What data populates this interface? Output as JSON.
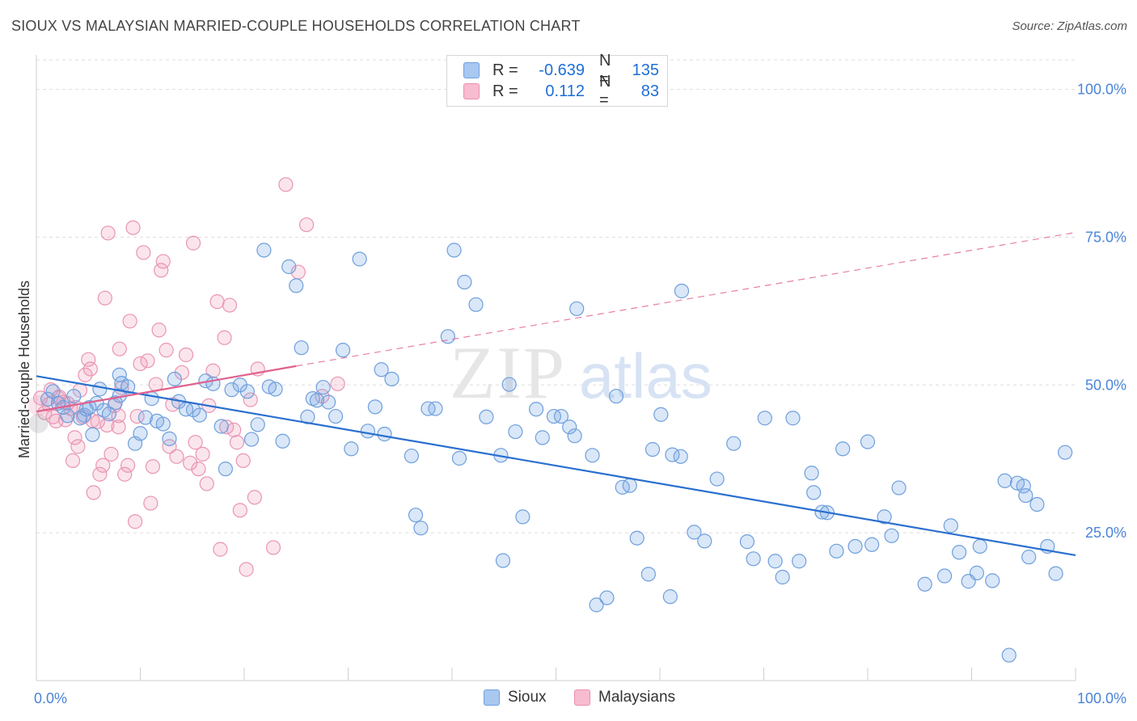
{
  "header": {
    "title": "SIOUX VS MALAYSIAN MARRIED-COUPLE HOUSEHOLDS CORRELATION CHART",
    "source": "Source: ZipAtlas.com"
  },
  "watermark": {
    "zip": "ZIP",
    "atlas": "atlas"
  },
  "legend": {
    "rows": [
      {
        "r_label": "R =",
        "r_value": "-0.639",
        "n_label": "N =",
        "n_value": "135",
        "color": "#a8c8f0",
        "border": "#6fa0e0"
      },
      {
        "r_label": "R =",
        "r_value": "0.112",
        "n_label": "N =",
        "n_value": "83",
        "color": "#f7bcd0",
        "border": "#ec8fae"
      }
    ]
  },
  "bottom_legend": {
    "sioux": "Sioux",
    "malaysians": "Malaysians"
  },
  "colors": {
    "sioux_fill": "rgba(120,170,230,0.28)",
    "sioux_stroke": "#6f9fdc",
    "sioux_line": "#2a6fcf",
    "malay_fill": "rgba(240,150,180,0.25)",
    "malay_stroke": "#e995b3",
    "malay_line": "#e0608e",
    "grid": "#dddddd",
    "tick_label": "#4a84d8"
  },
  "chart_data": {
    "type": "scatter",
    "title": "SIOUX VS MALAYSIAN MARRIED-COUPLE HOUSEHOLDS CORRELATION CHART",
    "xlabel": "",
    "ylabel": "Married-couple Households",
    "xlim": [
      0,
      100
    ],
    "ylim": [
      0,
      105
    ],
    "x_tick_labels": [
      "0.0%",
      "100.0%"
    ],
    "y_ticks": [
      25,
      50,
      75,
      100
    ],
    "y_tick_labels": [
      "25.0%",
      "50.0%",
      "75.0%",
      "100.0%"
    ],
    "grid": "horizontal dashed",
    "legend_position": "top-center",
    "series": [
      {
        "name": "Sioux",
        "trend": {
          "x": [
            0,
            100
          ],
          "y": [
            51.5,
            21.2
          ],
          "style": "solid"
        },
        "points": [
          [
            1.1,
            47.6
          ],
          [
            1.6,
            48.9
          ],
          [
            2.1,
            46.9
          ],
          [
            2.6,
            46.2
          ],
          [
            3.0,
            44.8
          ],
          [
            3.6,
            48.1
          ],
          [
            4.2,
            44.4
          ],
          [
            4.6,
            44.9
          ],
          [
            4.8,
            45.9
          ],
          [
            5.1,
            46.2
          ],
          [
            5.4,
            41.6
          ],
          [
            5.8,
            46.9
          ],
          [
            6.1,
            49.3
          ],
          [
            6.5,
            45.7
          ],
          [
            7.0,
            45.1
          ],
          [
            7.6,
            47.0
          ],
          [
            8.0,
            51.7
          ],
          [
            8.2,
            50.3
          ],
          [
            8.8,
            49.7
          ],
          [
            8.0,
            48.2
          ],
          [
            9.5,
            40.1
          ],
          [
            10.0,
            41.8
          ],
          [
            10.5,
            44.5
          ],
          [
            11.1,
            47.7
          ],
          [
            11.6,
            43.9
          ],
          [
            12.2,
            43.4
          ],
          [
            12.8,
            40.9
          ],
          [
            13.3,
            51.0
          ],
          [
            13.7,
            47.2
          ],
          [
            14.4,
            45.9
          ],
          [
            15.1,
            45.8
          ],
          [
            15.7,
            44.9
          ],
          [
            16.3,
            50.7
          ],
          [
            17.0,
            50.2
          ],
          [
            17.8,
            43.0
          ],
          [
            18.2,
            35.8
          ],
          [
            18.8,
            49.2
          ],
          [
            19.6,
            50.0
          ],
          [
            20.3,
            48.9
          ],
          [
            20.7,
            40.8
          ],
          [
            21.3,
            43.3
          ],
          [
            21.9,
            72.8
          ],
          [
            22.4,
            49.7
          ],
          [
            23.0,
            49.3
          ],
          [
            23.7,
            40.5
          ],
          [
            24.3,
            70.0
          ],
          [
            25.0,
            66.8
          ],
          [
            25.5,
            56.3
          ],
          [
            26.1,
            44.6
          ],
          [
            26.6,
            47.7
          ],
          [
            27.0,
            47.4
          ],
          [
            27.6,
            49.6
          ],
          [
            28.1,
            47.1
          ],
          [
            28.8,
            44.7
          ],
          [
            29.5,
            55.9
          ],
          [
            30.3,
            39.2
          ],
          [
            31.1,
            71.3
          ],
          [
            31.9,
            42.2
          ],
          [
            32.6,
            46.3
          ],
          [
            33.2,
            52.6
          ],
          [
            33.5,
            41.7
          ],
          [
            34.2,
            51.0
          ],
          [
            36.1,
            38.0
          ],
          [
            36.5,
            28.0
          ],
          [
            37.0,
            25.8
          ],
          [
            37.7,
            46.0
          ],
          [
            38.4,
            46.0
          ],
          [
            39.6,
            58.2
          ],
          [
            40.2,
            72.8
          ],
          [
            40.7,
            37.6
          ],
          [
            41.2,
            67.4
          ],
          [
            42.3,
            63.6
          ],
          [
            43.3,
            44.6
          ],
          [
            44.7,
            38.1
          ],
          [
            44.9,
            20.3
          ],
          [
            45.5,
            50.1
          ],
          [
            46.1,
            42.1
          ],
          [
            46.8,
            27.7
          ],
          [
            48.1,
            45.9
          ],
          [
            48.7,
            41.1
          ],
          [
            49.8,
            44.7
          ],
          [
            50.5,
            44.7
          ],
          [
            51.3,
            42.9
          ],
          [
            51.8,
            41.4
          ],
          [
            52.0,
            62.9
          ],
          [
            53.5,
            38.1
          ],
          [
            53.9,
            12.8
          ],
          [
            54.9,
            14.0
          ],
          [
            55.8,
            48.1
          ],
          [
            56.4,
            32.7
          ],
          [
            57.1,
            33.0
          ],
          [
            57.8,
            24.1
          ],
          [
            58.9,
            18.0
          ],
          [
            59.3,
            39.1
          ],
          [
            60.1,
            45.0
          ],
          [
            61.0,
            14.2
          ],
          [
            61.2,
            38.2
          ],
          [
            62.0,
            37.9
          ],
          [
            62.1,
            65.9
          ],
          [
            63.3,
            25.1
          ],
          [
            64.3,
            23.6
          ],
          [
            65.5,
            34.1
          ],
          [
            67.1,
            40.1
          ],
          [
            68.4,
            23.5
          ],
          [
            69.0,
            20.6
          ],
          [
            70.1,
            44.4
          ],
          [
            71.1,
            20.2
          ],
          [
            71.8,
            17.5
          ],
          [
            72.8,
            44.4
          ],
          [
            73.4,
            20.2
          ],
          [
            74.6,
            35.1
          ],
          [
            74.8,
            31.8
          ],
          [
            75.6,
            28.5
          ],
          [
            76.1,
            28.4
          ],
          [
            77.0,
            21.9
          ],
          [
            77.6,
            39.2
          ],
          [
            78.8,
            22.7
          ],
          [
            80.0,
            40.4
          ],
          [
            80.4,
            23.0
          ],
          [
            81.6,
            27.7
          ],
          [
            82.3,
            24.5
          ],
          [
            83.0,
            32.6
          ],
          [
            85.5,
            16.3
          ],
          [
            87.4,
            17.7
          ],
          [
            88.0,
            26.2
          ],
          [
            88.8,
            21.7
          ],
          [
            89.7,
            16.8
          ],
          [
            90.8,
            22.7
          ],
          [
            90.5,
            18.2
          ],
          [
            92.0,
            16.9
          ],
          [
            93.2,
            33.8
          ],
          [
            93.6,
            4.3
          ],
          [
            94.4,
            33.4
          ],
          [
            95.0,
            32.9
          ],
          [
            95.2,
            31.3
          ],
          [
            95.5,
            20.9
          ],
          [
            96.3,
            29.8
          ],
          [
            97.3,
            22.7
          ],
          [
            98.1,
            18.1
          ],
          [
            99.0,
            38.6
          ]
        ]
      },
      {
        "name": "Malaysians",
        "trend": {
          "x": [
            0,
            25
          ],
          "y": [
            45.5,
            53.2
          ],
          "style": "solid",
          "extended": {
            "x": [
              25,
              100
            ],
            "y": [
              53.2,
              75.8
            ],
            "style": "dashed"
          }
        },
        "points": [
          [
            0.4,
            47.8
          ],
          [
            0.8,
            45.3
          ],
          [
            1.2,
            46.7
          ],
          [
            1.4,
            49.2
          ],
          [
            1.6,
            44.6
          ],
          [
            1.9,
            43.9
          ],
          [
            2.2,
            48.0
          ],
          [
            2.6,
            47.1
          ],
          [
            2.8,
            44.1
          ],
          [
            3.0,
            46.9
          ],
          [
            3.3,
            46.0
          ],
          [
            3.5,
            37.2
          ],
          [
            3.7,
            41.1
          ],
          [
            4.0,
            39.6
          ],
          [
            4.2,
            49.1
          ],
          [
            4.5,
            44.6
          ],
          [
            4.7,
            51.7
          ],
          [
            5.0,
            54.3
          ],
          [
            5.2,
            52.7
          ],
          [
            5.5,
            31.8
          ],
          [
            5.9,
            43.8
          ],
          [
            6.1,
            34.9
          ],
          [
            6.4,
            36.4
          ],
          [
            6.6,
            64.7
          ],
          [
            6.9,
            75.7
          ],
          [
            7.2,
            38.3
          ],
          [
            7.5,
            46.5
          ],
          [
            7.9,
            42.9
          ],
          [
            8.0,
            56.1
          ],
          [
            8.2,
            49.5
          ],
          [
            8.5,
            34.9
          ],
          [
            8.8,
            36.4
          ],
          [
            9.0,
            60.8
          ],
          [
            9.3,
            76.6
          ],
          [
            9.5,
            26.9
          ],
          [
            9.7,
            44.7
          ],
          [
            10.0,
            53.6
          ],
          [
            10.3,
            72.4
          ],
          [
            10.7,
            54.1
          ],
          [
            11.0,
            30.0
          ],
          [
            11.2,
            36.2
          ],
          [
            11.5,
            50.1
          ],
          [
            11.8,
            59.3
          ],
          [
            12.0,
            69.4
          ],
          [
            12.2,
            70.9
          ],
          [
            12.5,
            55.9
          ],
          [
            12.8,
            39.6
          ],
          [
            13.1,
            46.7
          ],
          [
            13.5,
            37.9
          ],
          [
            14.0,
            52.1
          ],
          [
            14.4,
            55.1
          ],
          [
            14.8,
            36.8
          ],
          [
            15.1,
            74.0
          ],
          [
            15.3,
            40.3
          ],
          [
            15.6,
            35.8
          ],
          [
            16.0,
            38.3
          ],
          [
            16.4,
            33.3
          ],
          [
            16.6,
            46.5
          ],
          [
            17.0,
            52.4
          ],
          [
            17.4,
            64.1
          ],
          [
            17.7,
            22.2
          ],
          [
            18.1,
            58.0
          ],
          [
            18.3,
            42.9
          ],
          [
            18.6,
            63.5
          ],
          [
            19.0,
            42.4
          ],
          [
            19.3,
            40.3
          ],
          [
            19.6,
            28.8
          ],
          [
            19.9,
            37.2
          ],
          [
            20.2,
            18.8
          ],
          [
            20.6,
            47.5
          ],
          [
            21.0,
            31.0
          ],
          [
            21.3,
            52.7
          ],
          [
            22.8,
            22.5
          ],
          [
            24.0,
            83.9
          ],
          [
            25.2,
            69.1
          ],
          [
            26.0,
            77.1
          ],
          [
            27.5,
            48.1
          ],
          [
            29.0,
            50.2
          ],
          [
            2.1,
            47.8
          ],
          [
            3.8,
            46.2
          ],
          [
            5.4,
            44.0
          ],
          [
            6.8,
            43.2
          ],
          [
            7.9,
            44.8
          ]
        ]
      }
    ]
  }
}
